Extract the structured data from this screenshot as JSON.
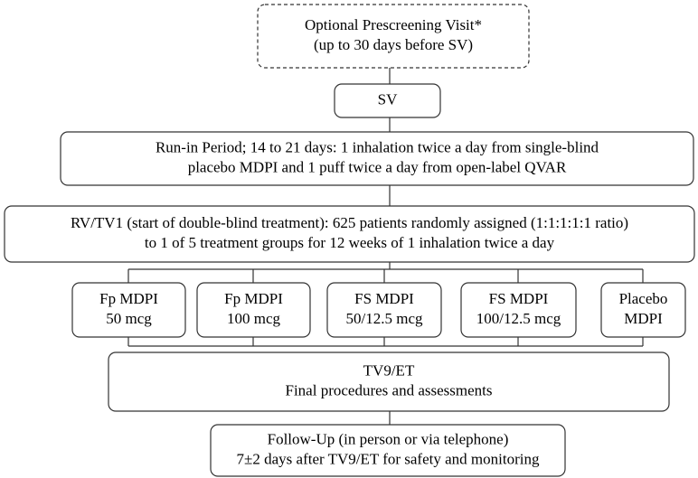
{
  "nodes": [
    {
      "lines": [
        "Optional Prescreening Visit*",
        "(up to 30 days before SV)"
      ]
    },
    {
      "lines": [
        "SV"
      ]
    },
    {
      "lines": [
        "Run-in Period; 14 to 21 days: 1 inhalation twice a day from single-blind",
        "placebo MDPI and 1 puff twice a day from open-label QVAR"
      ]
    },
    {
      "lines": [
        "RV/TV1 (start of double-blind treatment): 625 patients randomly assigned (1:1:1:1:1 ratio)",
        "to 1 of 5 treatment groups for 12 weeks of 1 inhalation twice a day"
      ]
    },
    {
      "lines": [
        "Fp MDPI",
        "50 mcg"
      ]
    },
    {
      "lines": [
        "Fp MDPI",
        "100 mcg"
      ]
    },
    {
      "lines": [
        "FS MDPI",
        "50/12.5 mcg"
      ]
    },
    {
      "lines": [
        "FS MDPI",
        "100/12.5 mcg"
      ]
    },
    {
      "lines": [
        "Placebo",
        "MDPI"
      ]
    },
    {
      "lines": [
        "TV9/ET",
        "Final procedures and assessments"
      ]
    },
    {
      "lines": [
        "Follow-Up (in person or via telephone)",
        "7±2 days after TV9/ET for safety and monitoring"
      ]
    }
  ]
}
